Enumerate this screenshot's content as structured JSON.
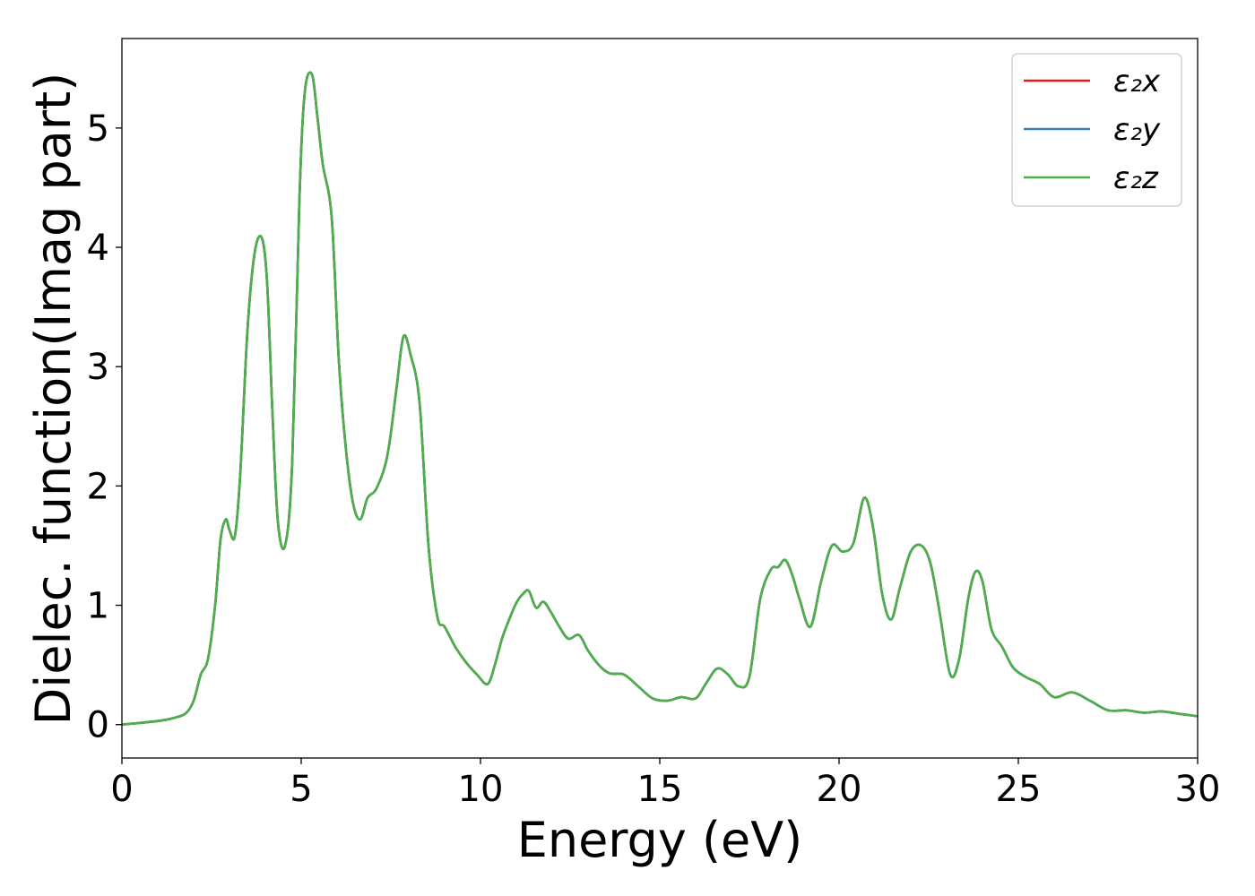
{
  "chart_data": {
    "type": "line",
    "title": "",
    "xlabel": "Energy (eV)",
    "ylabel": "Dielec. function(Imag part)",
    "xlim": [
      0,
      30
    ],
    "ylim": [
      -0.28,
      5.75
    ],
    "xticks": [
      0,
      5,
      10,
      15,
      20,
      25,
      30
    ],
    "xtick_labels": [
      "0",
      "5",
      "10",
      "15",
      "20",
      "25",
      "30"
    ],
    "yticks": [
      0,
      1,
      2,
      3,
      4,
      5
    ],
    "ytick_labels": [
      "0",
      "1",
      "2",
      "3",
      "4",
      "5"
    ],
    "grid": false,
    "legend_position": "top-right",
    "x": [
      0,
      1,
      1.5,
      1.8,
      2.0,
      2.2,
      2.4,
      2.6,
      2.75,
      2.9,
      3.0,
      3.15,
      3.3,
      3.5,
      3.7,
      3.9,
      4.05,
      4.2,
      4.35,
      4.55,
      4.75,
      4.95,
      5.1,
      5.3,
      5.45,
      5.6,
      5.85,
      6.05,
      6.25,
      6.45,
      6.65,
      6.85,
      7.1,
      7.4,
      7.65,
      7.85,
      8.05,
      8.3,
      8.55,
      8.8,
      9.0,
      9.3,
      9.6,
      9.9,
      10.2,
      10.4,
      10.6,
      10.8,
      11.0,
      11.2,
      11.35,
      11.55,
      11.75,
      11.95,
      12.2,
      12.45,
      12.75,
      13.0,
      13.3,
      13.6,
      14.0,
      14.4,
      14.8,
      15.2,
      15.6,
      16.0,
      16.3,
      16.6,
      16.9,
      17.2,
      17.5,
      17.8,
      18.1,
      18.3,
      18.5,
      18.7,
      18.9,
      19.2,
      19.5,
      19.8,
      20.1,
      20.4,
      20.7,
      20.95,
      21.2,
      21.45,
      21.7,
      22.0,
      22.3,
      22.55,
      22.8,
      23.1,
      23.35,
      23.6,
      23.8,
      24.0,
      24.25,
      24.55,
      24.85,
      25.2,
      25.6,
      26.0,
      26.5,
      27.0,
      27.5,
      28.0,
      28.5,
      29.0,
      29.5,
      30.0
    ],
    "series": [
      {
        "name": "ε₂x",
        "color": "#e41a1c",
        "values": [
          0.0,
          0.03,
          0.06,
          0.1,
          0.2,
          0.42,
          0.55,
          1.0,
          1.55,
          1.72,
          1.63,
          1.58,
          2.1,
          3.3,
          3.95,
          4.08,
          3.7,
          2.6,
          1.7,
          1.5,
          2.2,
          4.4,
          5.3,
          5.45,
          5.1,
          4.7,
          4.25,
          3.05,
          2.3,
          1.85,
          1.72,
          1.9,
          1.98,
          2.25,
          2.8,
          3.25,
          3.1,
          2.7,
          1.5,
          0.9,
          0.82,
          0.65,
          0.52,
          0.42,
          0.34,
          0.5,
          0.72,
          0.88,
          1.02,
          1.1,
          1.12,
          0.98,
          1.03,
          0.95,
          0.82,
          0.72,
          0.75,
          0.62,
          0.5,
          0.43,
          0.42,
          0.32,
          0.22,
          0.2,
          0.23,
          0.22,
          0.35,
          0.47,
          0.42,
          0.32,
          0.4,
          1.05,
          1.3,
          1.32,
          1.38,
          1.25,
          1.05,
          0.82,
          1.2,
          1.5,
          1.45,
          1.52,
          1.9,
          1.65,
          1.1,
          0.88,
          1.15,
          1.45,
          1.5,
          1.35,
          0.95,
          0.42,
          0.55,
          1.05,
          1.28,
          1.2,
          0.8,
          0.65,
          0.48,
          0.4,
          0.34,
          0.23,
          0.27,
          0.2,
          0.12,
          0.12,
          0.1,
          0.11,
          0.09,
          0.07
        ]
      },
      {
        "name": "ε₂y",
        "color": "#377eb8",
        "values": [
          0.0,
          0.03,
          0.06,
          0.1,
          0.2,
          0.42,
          0.55,
          1.0,
          1.55,
          1.72,
          1.63,
          1.58,
          2.1,
          3.3,
          3.95,
          4.08,
          3.7,
          2.6,
          1.7,
          1.5,
          2.2,
          4.4,
          5.3,
          5.45,
          5.1,
          4.7,
          4.25,
          3.05,
          2.3,
          1.85,
          1.72,
          1.9,
          1.98,
          2.25,
          2.8,
          3.25,
          3.1,
          2.7,
          1.5,
          0.9,
          0.82,
          0.65,
          0.52,
          0.42,
          0.34,
          0.5,
          0.72,
          0.88,
          1.02,
          1.1,
          1.12,
          0.98,
          1.03,
          0.95,
          0.82,
          0.72,
          0.75,
          0.62,
          0.5,
          0.43,
          0.42,
          0.32,
          0.22,
          0.2,
          0.23,
          0.22,
          0.35,
          0.47,
          0.42,
          0.32,
          0.4,
          1.05,
          1.3,
          1.32,
          1.38,
          1.25,
          1.05,
          0.82,
          1.2,
          1.5,
          1.45,
          1.52,
          1.9,
          1.65,
          1.1,
          0.88,
          1.15,
          1.45,
          1.5,
          1.35,
          0.95,
          0.42,
          0.55,
          1.05,
          1.28,
          1.2,
          0.8,
          0.65,
          0.48,
          0.4,
          0.34,
          0.23,
          0.27,
          0.2,
          0.12,
          0.12,
          0.1,
          0.11,
          0.09,
          0.07
        ]
      },
      {
        "name": "ε₂z",
        "color": "#4daf4a",
        "values": [
          0.0,
          0.03,
          0.06,
          0.1,
          0.2,
          0.42,
          0.55,
          1.0,
          1.55,
          1.72,
          1.63,
          1.58,
          2.1,
          3.3,
          3.95,
          4.08,
          3.7,
          2.6,
          1.7,
          1.5,
          2.2,
          4.4,
          5.3,
          5.45,
          5.1,
          4.7,
          4.25,
          3.05,
          2.3,
          1.85,
          1.72,
          1.9,
          1.98,
          2.25,
          2.8,
          3.25,
          3.1,
          2.7,
          1.5,
          0.9,
          0.82,
          0.65,
          0.52,
          0.42,
          0.34,
          0.5,
          0.72,
          0.88,
          1.02,
          1.1,
          1.12,
          0.98,
          1.03,
          0.95,
          0.82,
          0.72,
          0.75,
          0.62,
          0.5,
          0.43,
          0.42,
          0.32,
          0.22,
          0.2,
          0.23,
          0.22,
          0.35,
          0.47,
          0.42,
          0.32,
          0.4,
          1.05,
          1.3,
          1.32,
          1.38,
          1.25,
          1.05,
          0.82,
          1.2,
          1.5,
          1.45,
          1.52,
          1.9,
          1.65,
          1.1,
          0.88,
          1.15,
          1.45,
          1.5,
          1.35,
          0.95,
          0.42,
          0.55,
          1.05,
          1.28,
          1.2,
          0.8,
          0.65,
          0.48,
          0.4,
          0.34,
          0.23,
          0.27,
          0.2,
          0.12,
          0.12,
          0.1,
          0.11,
          0.09,
          0.07
        ]
      }
    ]
  }
}
